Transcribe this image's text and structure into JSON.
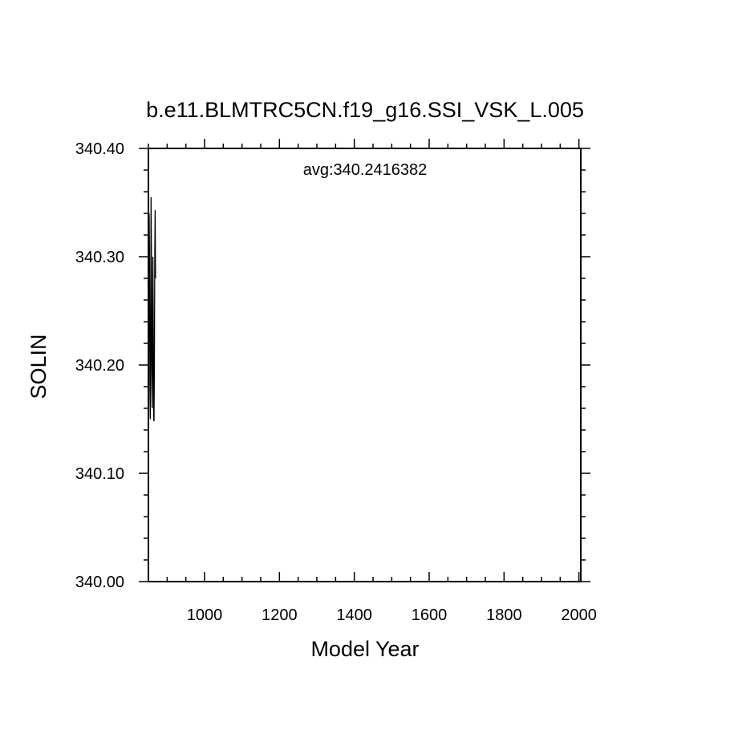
{
  "chart_data": {
    "type": "line",
    "title": "b.e11.BLMTRC5CN.f19_g16.SSI_VSK_L.005",
    "xlabel": "Model Year",
    "ylabel": "SOLIN",
    "annotation": "avg:340.2416382",
    "xlim": [
      850,
      2005
    ],
    "ylim": [
      340.0,
      340.4
    ],
    "x_ticks": [
      1000,
      1200,
      1400,
      1600,
      1800,
      2000
    ],
    "x_tick_labels": [
      "1000",
      "1200",
      "1400",
      "1600",
      "1800",
      "2000"
    ],
    "y_ticks": [
      340.0,
      340.1,
      340.2,
      340.3,
      340.4
    ],
    "y_tick_labels": [
      "340.00",
      "340.10",
      "340.20",
      "340.30",
      "340.40"
    ],
    "grid": false,
    "series": [
      {
        "color": "#000000",
        "x": [
          850,
          851,
          852,
          853,
          854,
          855,
          856,
          857,
          858,
          859,
          860,
          861,
          862,
          863,
          864,
          865,
          866,
          867,
          868,
          869
        ],
        "y": [
          340.17,
          340.24,
          340.34,
          340.3,
          340.18,
          340.15,
          340.2,
          340.355,
          340.31,
          340.2,
          340.16,
          340.2,
          340.3,
          340.24,
          340.15,
          340.148,
          340.2,
          340.3,
          340.343,
          340.28
        ]
      }
    ]
  }
}
